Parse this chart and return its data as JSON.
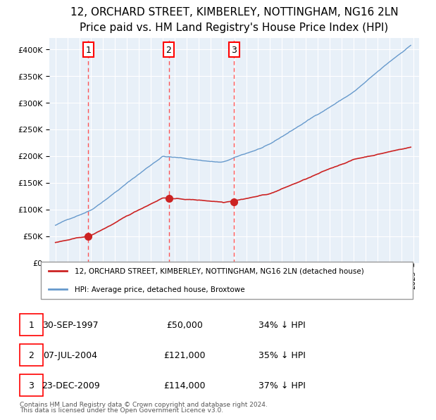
{
  "title": "12, ORCHARD STREET, KIMBERLEY, NOTTINGHAM, NG16 2LN",
  "subtitle": "Price paid vs. HM Land Registry's House Price Index (HPI)",
  "legend_line1": "12, ORCHARD STREET, KIMBERLEY, NOTTINGHAM, NG16 2LN (detached house)",
  "legend_line2": "HPI: Average price, detached house, Broxtowe",
  "footer1": "Contains HM Land Registry data © Crown copyright and database right 2024.",
  "footer2": "This data is licensed under the Open Government Licence v3.0.",
  "sale_dates": [
    "1997-09-30",
    "2004-07-07",
    "2009-12-23"
  ],
  "sale_prices": [
    50000,
    121000,
    114000
  ],
  "sale_labels": [
    "1",
    "2",
    "3"
  ],
  "sale_info": [
    {
      "label": "1",
      "date": "30-SEP-1997",
      "price": "£50,000",
      "pct": "34% ↓ HPI"
    },
    {
      "label": "2",
      "date": "07-JUL-2004",
      "price": "£121,000",
      "pct": "35% ↓ HPI"
    },
    {
      "label": "3",
      "date": "23-DEC-2009",
      "price": "£114,000",
      "pct": "37% ↓ HPI"
    }
  ],
  "ylim": [
    0,
    420000
  ],
  "yticks": [
    0,
    50000,
    100000,
    150000,
    200000,
    250000,
    300000,
    350000,
    400000
  ],
  "ytick_labels": [
    "£0",
    "£50K",
    "£100K",
    "£150K",
    "£200K",
    "£250K",
    "£300K",
    "£350K",
    "£400K"
  ],
  "hpi_color": "#6699cc",
  "price_color": "#cc2222",
  "sale_dot_color": "#cc2222",
  "vline_color": "#ff4444",
  "bg_color": "#e8f0f8",
  "plot_bg": "#e8f0f8",
  "grid_color": "#ffffff",
  "title_fontsize": 11,
  "subtitle_fontsize": 9.5
}
